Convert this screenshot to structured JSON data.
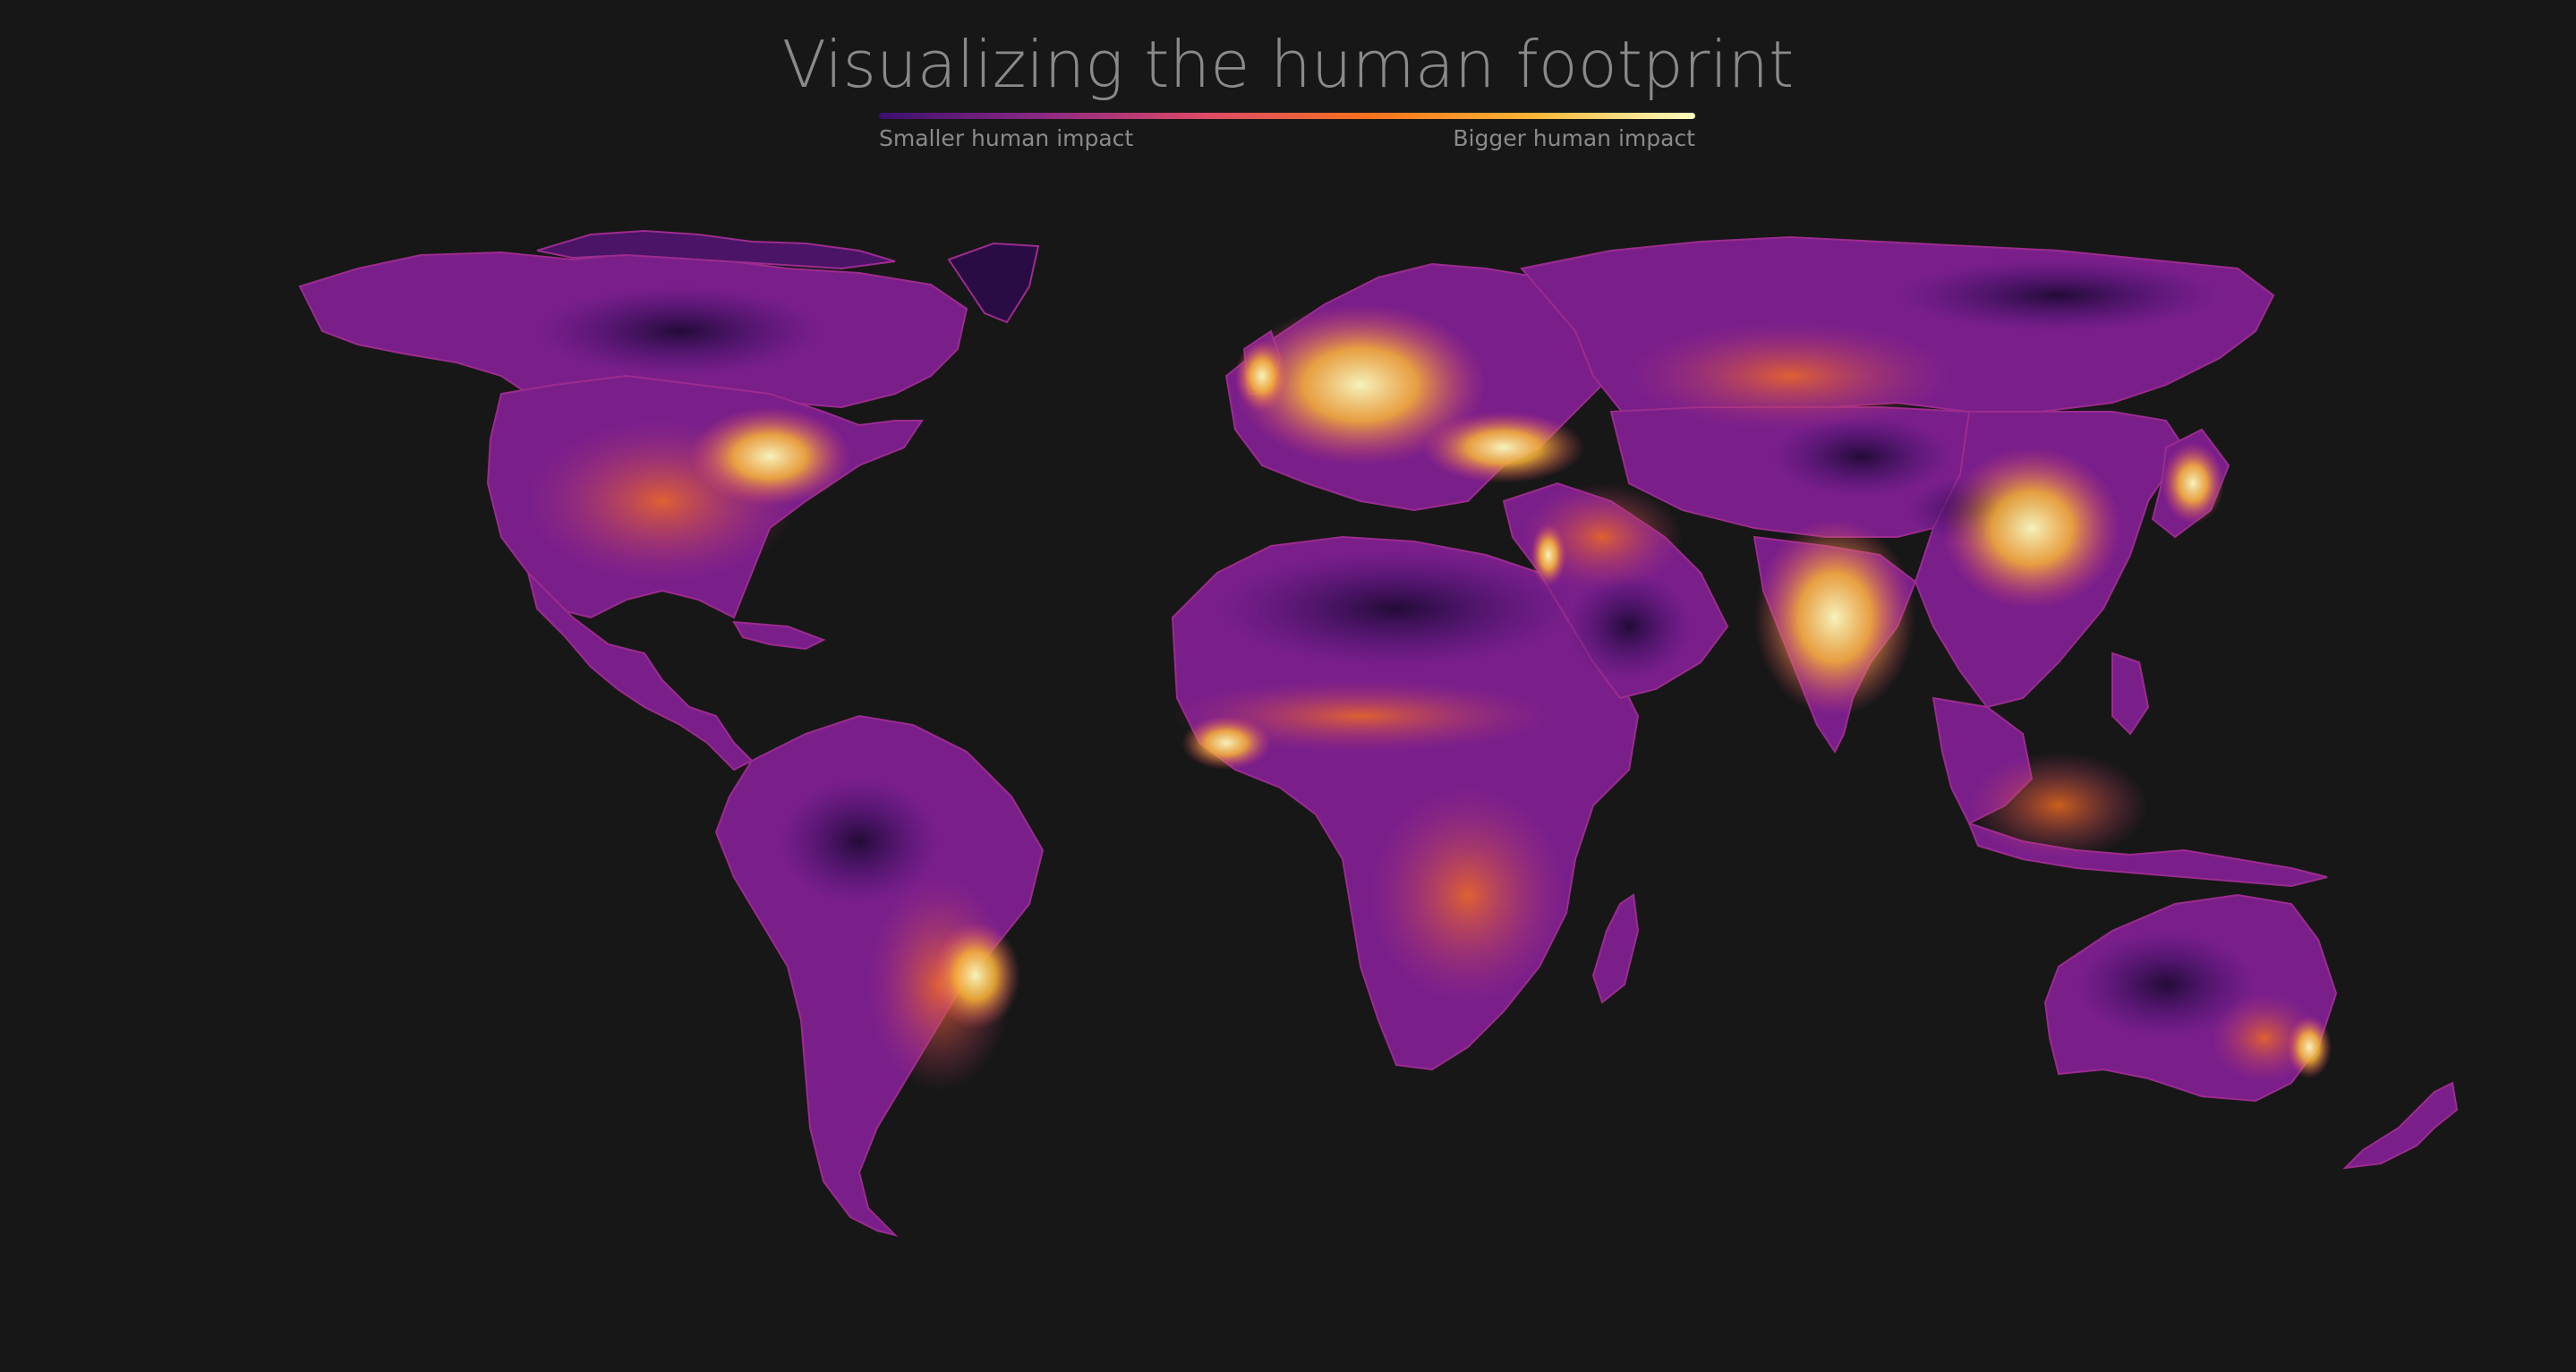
{
  "title": "Visualizing the human footprint",
  "legend": {
    "low_label": "Smaller human impact",
    "high_label": "Bigger human impact",
    "gradient_colors": [
      "#3b0f70",
      "#8c2981",
      "#de4968",
      "#f7711c",
      "#fbb535",
      "#fcfdbf"
    ]
  },
  "colors": {
    "background": "#171717",
    "text": "#8a8a8a",
    "land_low": "#3b0f70",
    "land_mid": "#8c2981",
    "land_high": "#f7a43a",
    "land_max": "#fcfdbf"
  }
}
